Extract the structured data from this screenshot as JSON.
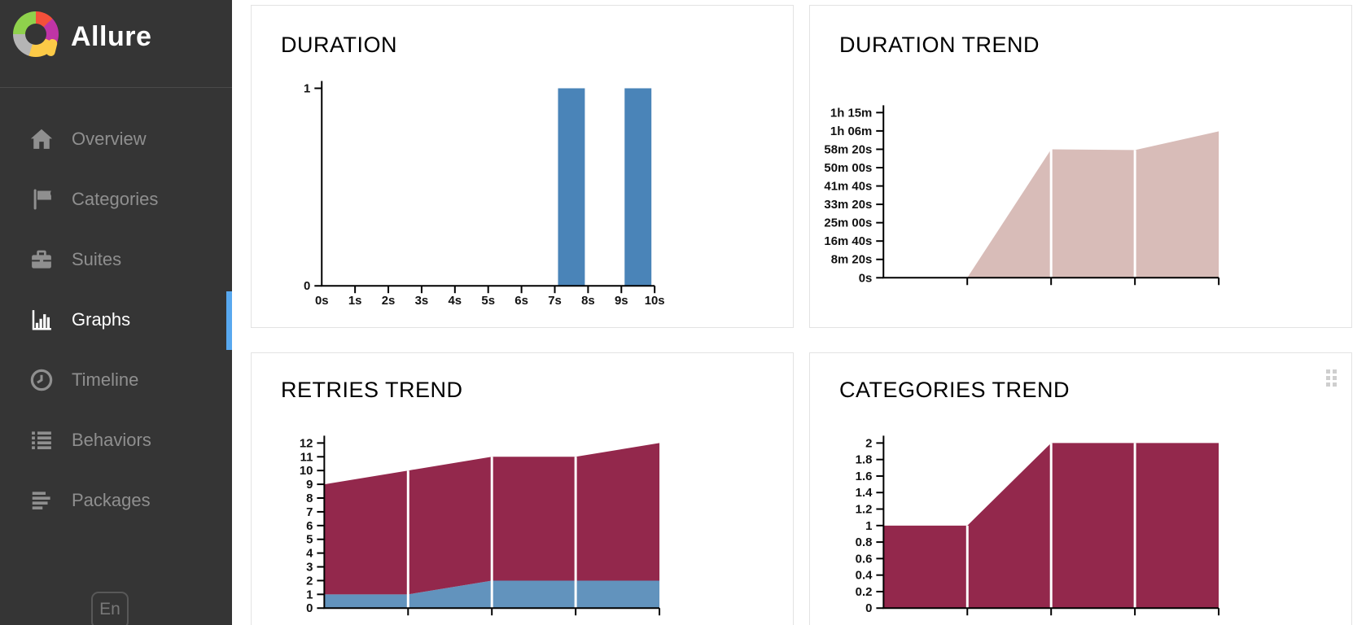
{
  "sidebar": {
    "brand": "Allure",
    "items": [
      {
        "label": "Overview",
        "icon": "home-icon",
        "active": false
      },
      {
        "label": "Categories",
        "icon": "flag-icon",
        "active": false
      },
      {
        "label": "Suites",
        "icon": "briefcase-icon",
        "active": false
      },
      {
        "label": "Graphs",
        "icon": "bar-chart-icon",
        "active": true
      },
      {
        "label": "Timeline",
        "icon": "clock-icon",
        "active": false
      },
      {
        "label": "Behaviors",
        "icon": "list-icon",
        "active": false
      },
      {
        "label": "Packages",
        "icon": "align-left-icon",
        "active": false
      }
    ],
    "language_button_label": "En"
  },
  "colors": {
    "sidebar_bg": "#353535",
    "sidebar_item": "#8f8f8f",
    "sidebar_item_active": "#ffffff",
    "active_indicator_blue": "#58a8ef",
    "panel_border": "#e3e3e3",
    "histogram_bar_blue": "#4a84b8",
    "trend_pink": "#d8bcb8",
    "trend_maroon": "#93284c",
    "trend_blue": "#6293bd"
  },
  "chart_data": [
    {
      "type": "bar",
      "title": "DURATION",
      "xlim": [
        0,
        10
      ],
      "ylim": [
        0,
        1
      ],
      "x_tick_labels": [
        "0s",
        "1s",
        "2s",
        "3s",
        "4s",
        "5s",
        "6s",
        "7s",
        "8s",
        "9s",
        "10s"
      ],
      "y_tick_labels": [
        "0",
        "1"
      ],
      "bars": [
        {
          "from": 7,
          "to": 8,
          "value": 1
        },
        {
          "from": 9,
          "to": 10,
          "value": 1
        }
      ],
      "color": "#4a84b8"
    },
    {
      "type": "area",
      "title": "DURATION TREND",
      "x": [
        1,
        2,
        3,
        4,
        5
      ],
      "ylim": [
        0,
        4500
      ],
      "y_tick_labels": [
        "0s",
        "8m 20s",
        "16m 40s",
        "25m 00s",
        "33m 20s",
        "41m 40s",
        "50m 00s",
        "58m 20s",
        "1h 06m",
        "1h 15m"
      ],
      "series": [
        {
          "name": "duration-pink",
          "color": "#d8bcb8",
          "values": [
            0,
            0,
            3500,
            3480,
            3990
          ]
        }
      ]
    },
    {
      "type": "area",
      "title": "RETRIES TREND",
      "x": [
        1,
        2,
        3,
        4,
        5
      ],
      "ylim": [
        0,
        12
      ],
      "y_tick_labels": [
        "0",
        "1",
        "2",
        "3",
        "4",
        "5",
        "6",
        "7",
        "8",
        "9",
        "10",
        "11",
        "12"
      ],
      "series": [
        {
          "name": "blue-bottom-band",
          "color": "#6293bd",
          "values": [
            1,
            1,
            2,
            2,
            2
          ]
        },
        {
          "name": "maroon-top-band",
          "color": "#93284c",
          "values": [
            8,
            9,
            9,
            9,
            10
          ]
        }
      ]
    },
    {
      "type": "area",
      "title": "CATEGORIES TREND",
      "x": [
        1,
        2,
        3,
        4,
        5
      ],
      "ylim": [
        0,
        2
      ],
      "y_tick_labels": [
        "0",
        "0.2",
        "0.4",
        "0.6",
        "0.8",
        "1",
        "1.2",
        "1.4",
        "1.6",
        "1.8",
        "2"
      ],
      "series": [
        {
          "name": "maroon",
          "color": "#93284c",
          "values": [
            1,
            1,
            2,
            2,
            2
          ]
        }
      ]
    }
  ]
}
